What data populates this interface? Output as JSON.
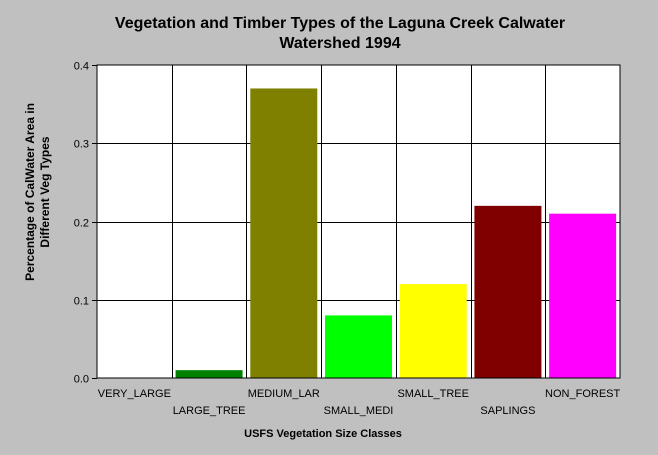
{
  "chart_data": {
    "type": "bar",
    "title_lines": [
      "Vegetation and Timber Types of the Laguna Creek Calwater",
      "Watershed 1994"
    ],
    "ylabel_lines": [
      "Percentage of CalWater Area in",
      "Different Veg Types"
    ],
    "xlabel": "USFS Vegetation Size Classes",
    "categories": [
      "VERY_LARGE",
      "LARGE_TREE",
      "MEDIUM_LAR",
      "SMALL_MEDI",
      "SMALL_TREE",
      "SAPLINGS",
      "NON_FOREST"
    ],
    "values": [
      0.0,
      0.01,
      0.37,
      0.08,
      0.12,
      0.22,
      0.21
    ],
    "colors": [
      "#000000",
      "#008000",
      "#808000",
      "#00ff00",
      "#ffff00",
      "#800000",
      "#ff00ff"
    ],
    "ylim": [
      0,
      0.4
    ],
    "yticks": [
      "0.0",
      "0.1",
      "0.2",
      "0.3",
      "0.4"
    ],
    "grid": true,
    "legend": "none"
  }
}
